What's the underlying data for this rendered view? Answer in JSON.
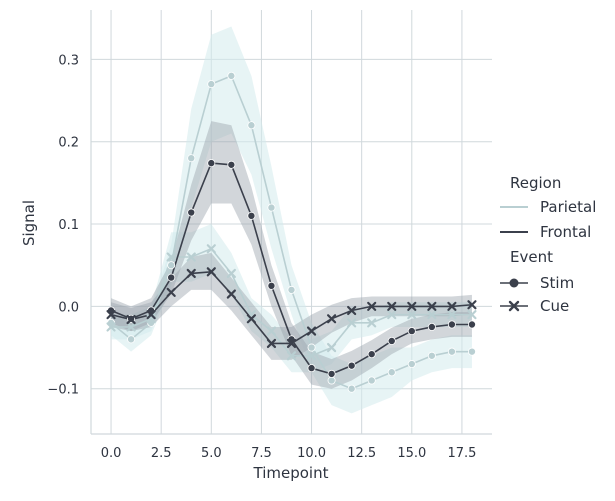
{
  "chart_data": {
    "type": "line",
    "xlabel": "Timepoint",
    "ylabel": "Signal",
    "xlim": [
      -1,
      19
    ],
    "ylim": [
      -0.155,
      0.36
    ],
    "x_ticks": [
      0,
      2.5,
      5,
      7.5,
      10,
      12.5,
      15,
      17.5
    ],
    "x_tick_labels": [
      "0.0",
      "2.5",
      "5.0",
      "7.5",
      "10.0",
      "12.5",
      "15.0",
      "17.5"
    ],
    "y_ticks": [
      -0.1,
      0.0,
      0.1,
      0.2,
      0.3
    ],
    "y_tick_labels": [
      "−0.1",
      "0.0",
      "0.1",
      "0.2",
      "0.3"
    ],
    "grid": true,
    "legend_position": "right",
    "legend": {
      "region_title": "Region",
      "region_items": [
        {
          "label": "Parietal",
          "color": "#b9cfd2"
        },
        {
          "label": "Frontal",
          "color": "#3b404c"
        }
      ],
      "event_title": "Event",
      "event_items": [
        {
          "label": "Stim",
          "marker": "circle"
        },
        {
          "label": "Cue",
          "marker": "x"
        }
      ]
    },
    "colors": {
      "parietal_line": "#b9cfd2",
      "parietal_band": "#d3ebec",
      "frontal_line": "#3b404c",
      "frontal_band": "#9ba3ad",
      "grid": "#d0d8dc",
      "text": "#2e3440"
    },
    "x": [
      0,
      1,
      2,
      3,
      4,
      5,
      6,
      7,
      8,
      9,
      10,
      11,
      12,
      13,
      14,
      15,
      16,
      17,
      18
    ],
    "series": [
      {
        "region": "Parietal",
        "event": "Stim",
        "values": [
          -0.02,
          -0.04,
          -0.02,
          0.05,
          0.18,
          0.27,
          0.28,
          0.22,
          0.12,
          0.02,
          -0.05,
          -0.09,
          -0.1,
          -0.09,
          -0.08,
          -0.07,
          -0.06,
          -0.055,
          -0.055
        ],
        "lower": [
          -0.035,
          -0.055,
          -0.035,
          0.025,
          0.12,
          0.2,
          0.21,
          0.16,
          0.07,
          -0.01,
          -0.08,
          -0.12,
          -0.13,
          -0.12,
          -0.11,
          -0.09,
          -0.08,
          -0.075,
          -0.075
        ],
        "upper": [
          -0.005,
          -0.025,
          -0.005,
          0.075,
          0.24,
          0.33,
          0.34,
          0.28,
          0.17,
          0.05,
          -0.02,
          -0.06,
          -0.07,
          -0.06,
          -0.05,
          -0.05,
          -0.04,
          -0.035,
          -0.035
        ]
      },
      {
        "region": "Parietal",
        "event": "Cue",
        "values": [
          -0.025,
          -0.025,
          -0.015,
          0.06,
          0.06,
          0.07,
          0.04,
          -0.01,
          -0.03,
          -0.06,
          -0.06,
          -0.05,
          -0.02,
          -0.02,
          -0.01,
          -0.01,
          -0.01,
          -0.01,
          -0.01
        ],
        "lower": [
          -0.04,
          -0.04,
          -0.03,
          0.03,
          0.03,
          0.04,
          0.015,
          -0.03,
          -0.05,
          -0.08,
          -0.08,
          -0.07,
          -0.04,
          -0.035,
          -0.025,
          -0.025,
          -0.025,
          -0.025,
          -0.025
        ],
        "upper": [
          -0.01,
          -0.01,
          0.0,
          0.09,
          0.09,
          0.1,
          0.065,
          0.01,
          -0.01,
          -0.04,
          -0.04,
          -0.03,
          0.0,
          -0.005,
          0.005,
          0.005,
          0.005,
          0.005,
          0.005
        ]
      },
      {
        "region": "Frontal",
        "event": "Stim",
        "values": [
          -0.005,
          -0.015,
          -0.005,
          0.035,
          0.114,
          0.174,
          0.172,
          0.11,
          0.025,
          -0.04,
          -0.075,
          -0.082,
          -0.072,
          -0.058,
          -0.042,
          -0.03,
          -0.025,
          -0.022,
          -0.022
        ],
        "lower": [
          -0.02,
          -0.03,
          -0.02,
          0.015,
          0.08,
          0.125,
          0.125,
          0.075,
          0.0,
          -0.06,
          -0.095,
          -0.1,
          -0.09,
          -0.075,
          -0.058,
          -0.045,
          -0.04,
          -0.037,
          -0.037
        ],
        "upper": [
          0.01,
          0.0,
          0.01,
          0.055,
          0.148,
          0.225,
          0.22,
          0.145,
          0.05,
          -0.02,
          -0.055,
          -0.064,
          -0.054,
          -0.041,
          -0.026,
          -0.015,
          -0.01,
          -0.007,
          -0.007
        ]
      },
      {
        "region": "Frontal",
        "event": "Cue",
        "values": [
          -0.01,
          -0.016,
          -0.01,
          0.017,
          0.04,
          0.042,
          0.015,
          -0.015,
          -0.045,
          -0.045,
          -0.03,
          -0.015,
          -0.005,
          0.0,
          0.0,
          0.0,
          0.0,
          0.0,
          0.002
        ],
        "lower": [
          -0.025,
          -0.03,
          -0.025,
          0.0,
          0.02,
          0.02,
          -0.005,
          -0.035,
          -0.065,
          -0.065,
          -0.05,
          -0.032,
          -0.02,
          -0.012,
          -0.012,
          -0.012,
          -0.012,
          -0.012,
          -0.01
        ],
        "upper": [
          0.005,
          -0.002,
          0.005,
          0.034,
          0.06,
          0.065,
          0.035,
          0.005,
          -0.025,
          -0.025,
          -0.01,
          0.002,
          0.01,
          0.012,
          0.012,
          0.012,
          0.012,
          0.012,
          0.014
        ]
      }
    ]
  }
}
